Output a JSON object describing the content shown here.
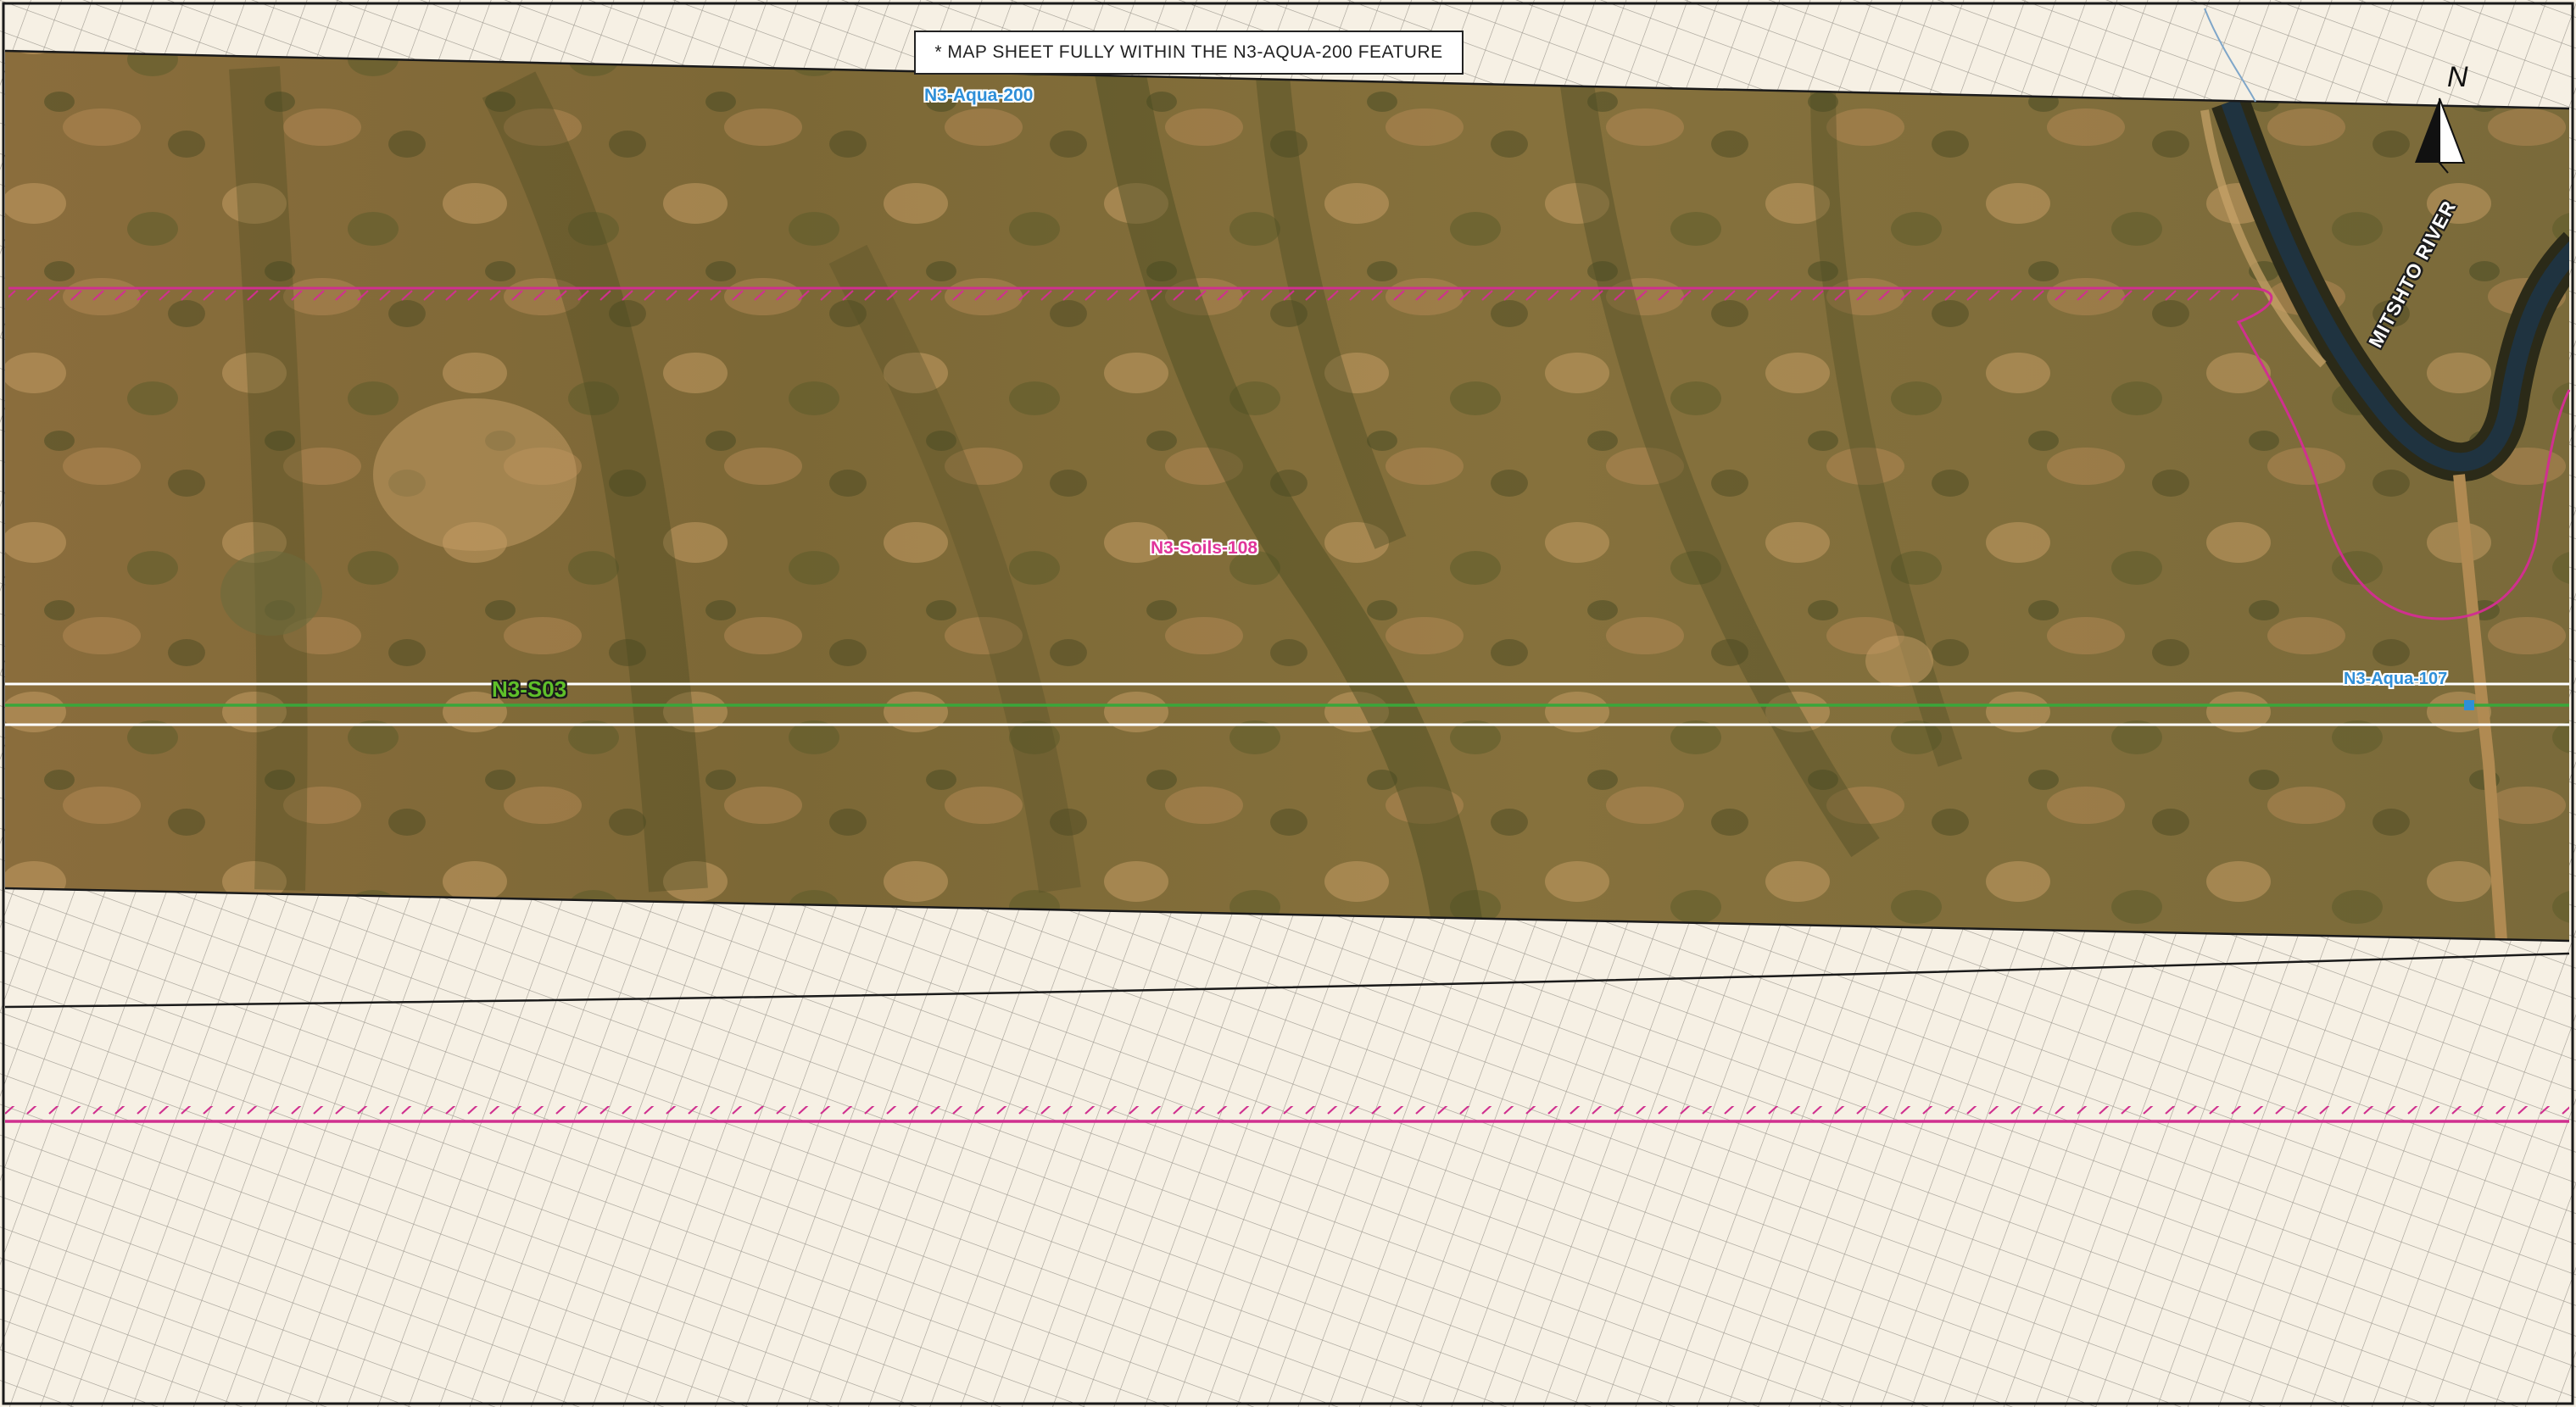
{
  "note": "* MAP SHEET FULLY WITHIN THE N3-AQUA-200 FEATURE",
  "labels": {
    "aqua_200": "N3-Aqua-200",
    "soils_108": "N3-Soils-108",
    "alignment": "N3-S03",
    "aqua_107": "N3-Aqua-107",
    "river": "MITSHTO RIVER"
  },
  "north_arrow_label": "N",
  "icons": [
    "north-arrow-icon"
  ],
  "colors": {
    "aqua_label": "#2f8fd8",
    "soils_label": "#e0359a",
    "soils_boundary": "#d0308f",
    "alignment_line": "#3aa63a",
    "corridor_edges": "#ffffff",
    "map_background": "#f6f0e4",
    "hatch": "#9d9890"
  }
}
